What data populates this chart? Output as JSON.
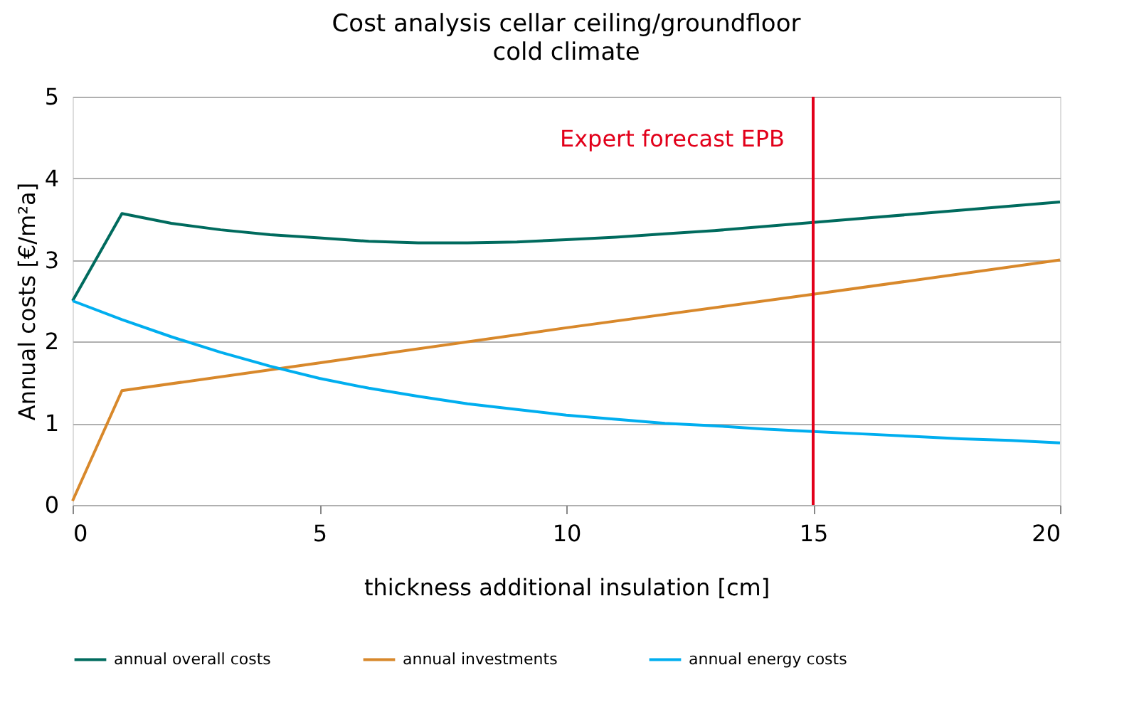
{
  "chart_data": {
    "type": "line",
    "title": "Cost analysis cellar ceiling/groundfloor",
    "subtitle": "cold climate",
    "xlabel": "thickness additional insulation [cm]",
    "ylabel": "Annual costs [€/m²a]",
    "xlim": [
      0,
      20
    ],
    "xticks": [
      0,
      5,
      10,
      15,
      20
    ],
    "ylim": [
      0,
      5
    ],
    "yticks": [
      0,
      1,
      2,
      3,
      4,
      5
    ],
    "grid": "y",
    "legend": "bottom",
    "marker": "none",
    "line_style": "solid",
    "series": [
      {
        "name": "annual overall costs",
        "color": "#006b5e",
        "x": [
          0,
          1,
          2,
          3,
          4,
          5,
          6,
          7,
          8,
          9,
          10,
          11,
          12,
          13,
          14,
          15,
          16,
          17,
          18,
          19,
          20
        ],
        "values": [
          2.5,
          3.57,
          3.45,
          3.37,
          3.31,
          3.27,
          3.23,
          3.21,
          3.21,
          3.22,
          3.25,
          3.28,
          3.32,
          3.36,
          3.41,
          3.46,
          3.51,
          3.56,
          3.61,
          3.66,
          3.71
        ]
      },
      {
        "name": "annual investments",
        "color": "#d8882b",
        "x": [
          0,
          1,
          5,
          10,
          15,
          20
        ],
        "values": [
          0.05,
          1.4,
          1.74,
          2.17,
          2.58,
          3.0
        ]
      },
      {
        "name": "annual energy costs",
        "color": "#00aeef",
        "x": [
          0,
          1,
          2,
          3,
          4,
          5,
          6,
          7,
          8,
          9,
          10,
          11,
          12,
          13,
          14,
          15,
          16,
          17,
          18,
          19,
          20
        ],
        "values": [
          2.5,
          2.27,
          2.06,
          1.87,
          1.7,
          1.55,
          1.43,
          1.33,
          1.24,
          1.17,
          1.1,
          1.05,
          1.0,
          0.97,
          0.93,
          0.9,
          0.87,
          0.84,
          0.81,
          0.79,
          0.76
        ]
      }
    ],
    "ref_lines": [
      {
        "axis": "x",
        "value": 15,
        "label": "Expert forecast EPB",
        "color": "#e2001a",
        "line_style": "solid"
      }
    ]
  }
}
